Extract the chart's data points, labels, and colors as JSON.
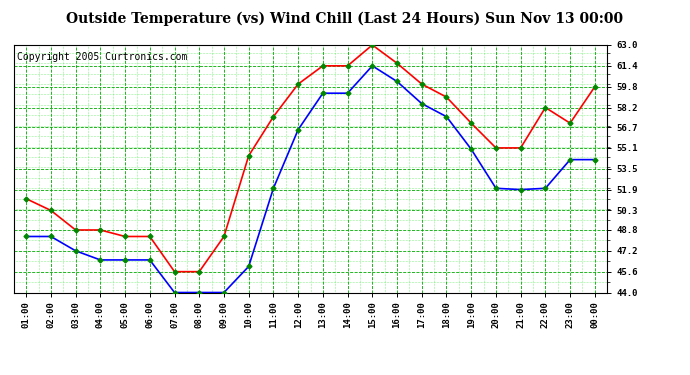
{
  "title": "Outside Temperature (vs) Wind Chill (Last 24 Hours) Sun Nov 13 00:00",
  "copyright": "Copyright 2005 Curtronics.com",
  "x_labels": [
    "01:00",
    "02:00",
    "03:00",
    "04:00",
    "05:00",
    "06:00",
    "07:00",
    "08:00",
    "09:00",
    "10:00",
    "11:00",
    "12:00",
    "13:00",
    "14:00",
    "15:00",
    "16:00",
    "17:00",
    "18:00",
    "19:00",
    "20:00",
    "21:00",
    "22:00",
    "23:00",
    "00:00"
  ],
  "red_line": [
    51.2,
    50.3,
    48.8,
    48.8,
    48.3,
    48.3,
    45.6,
    45.6,
    48.3,
    54.5,
    57.5,
    60.0,
    61.4,
    61.4,
    63.0,
    61.6,
    60.0,
    59.0,
    57.0,
    55.1,
    55.1,
    58.2,
    57.0,
    59.8
  ],
  "blue_line": [
    48.3,
    48.3,
    47.2,
    46.5,
    46.5,
    46.5,
    44.0,
    44.0,
    44.0,
    46.0,
    52.0,
    56.5,
    59.3,
    59.3,
    61.4,
    60.2,
    58.5,
    57.5,
    55.0,
    52.0,
    51.9,
    52.0,
    54.2,
    54.2
  ],
  "ylim": [
    44.0,
    63.0
  ],
  "yticks": [
    44.0,
    45.6,
    47.2,
    48.8,
    50.3,
    51.9,
    53.5,
    55.1,
    56.7,
    58.2,
    59.8,
    61.4,
    63.0
  ],
  "ytick_labels": [
    "44.0",
    "45.6",
    "47.2",
    "48.8",
    "50.3",
    "51.9",
    "53.5",
    "55.1",
    "56.7",
    "58.2",
    "59.8",
    "61.4",
    "63.0"
  ],
  "bg_color": "#ffffff",
  "plot_bg_color": "#ffffff",
  "grid_major_color": "#00aa00",
  "grid_minor_color": "#00dd00",
  "red_color": "#ff0000",
  "blue_color": "#0000ff",
  "marker_color": "#008800",
  "title_fontsize": 10,
  "copyright_fontsize": 7
}
